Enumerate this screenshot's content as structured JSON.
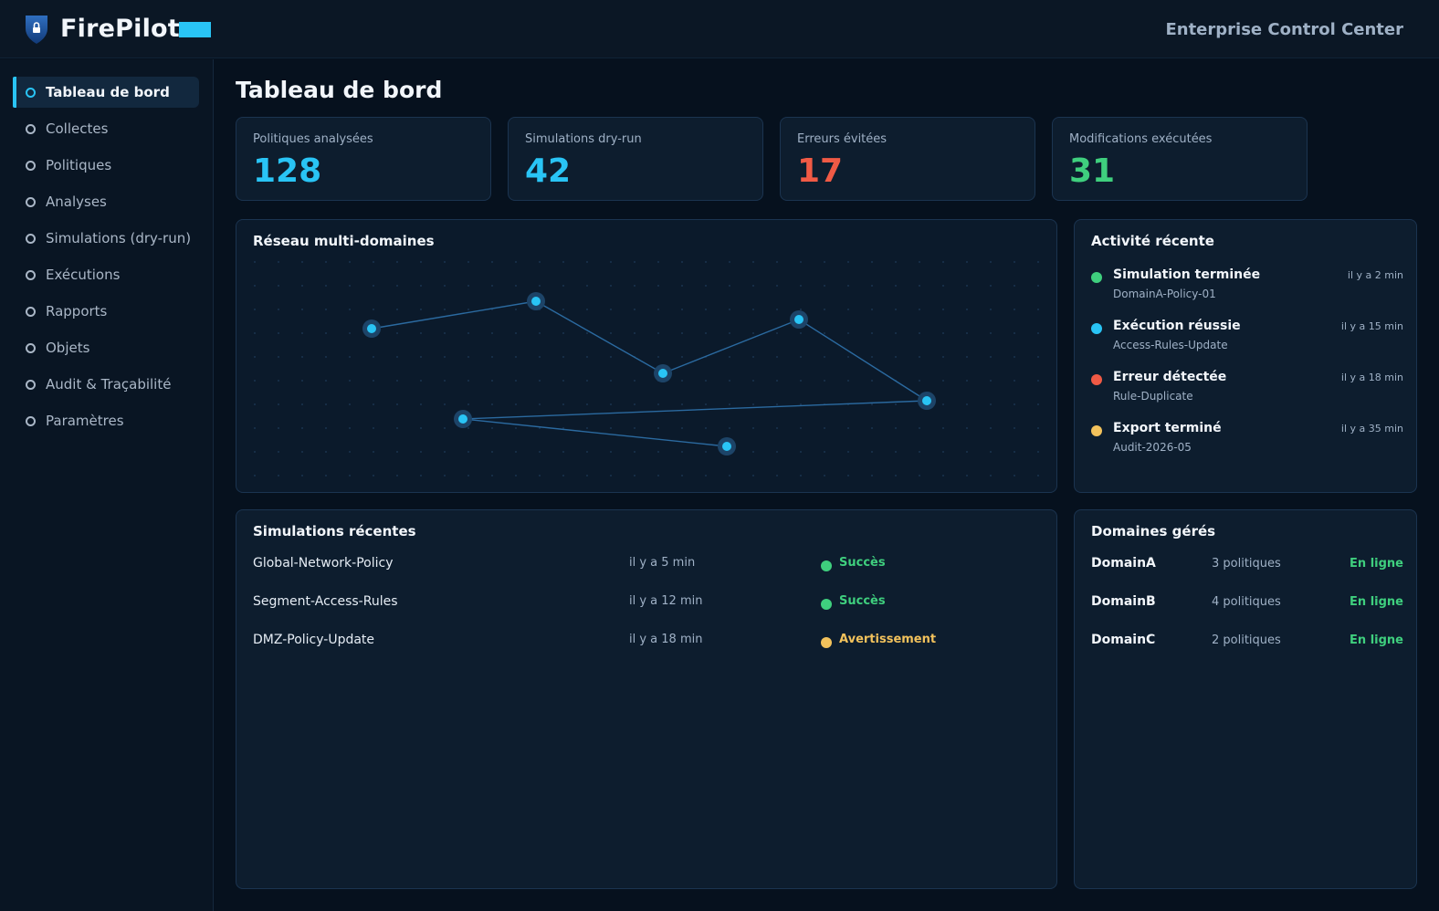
{
  "header": {
    "app_title": "FirePilot",
    "right_title": "Enterprise Control Center",
    "brand_color": "#29c4f5",
    "logo_icon": "shield-lock-icon"
  },
  "sidebar": {
    "items": [
      {
        "label": "Tableau de bord",
        "active": true
      },
      {
        "label": "Collectes"
      },
      {
        "label": "Politiques"
      },
      {
        "label": "Analyses"
      },
      {
        "label": "Simulations (dry-run)"
      },
      {
        "label": "Exécutions"
      },
      {
        "label": "Rapports"
      },
      {
        "label": "Objets"
      },
      {
        "label": "Audit & Traçabilité"
      },
      {
        "label": "Paramètres"
      }
    ]
  },
  "main": {
    "page_title": "Tableau de bord",
    "stats": [
      {
        "label": "Politiques analysées",
        "value": "128",
        "color": "#29c4f5"
      },
      {
        "label": "Simulations dry-run",
        "value": "42",
        "color": "#29c4f5"
      },
      {
        "label": "Erreurs évitées",
        "value": "17",
        "color": "#f05a45"
      },
      {
        "label": "Modifications exécutées",
        "value": "31",
        "color": "#3fcf7e"
      }
    ],
    "network": {
      "title": "Réseau multi-domaines",
      "node_count": 7
    },
    "activity": {
      "title": "Activité récente",
      "items": [
        {
          "title": "Simulation terminée",
          "sub": "DomainA-Policy-01",
          "time": "il y a 2 min",
          "color": "#3fcf7e"
        },
        {
          "title": "Exécution réussie",
          "sub": "Access-Rules-Update",
          "time": "il y a 15 min",
          "color": "#29c4f5"
        },
        {
          "title": "Erreur détectée",
          "sub": "Rule-Duplicate",
          "time": "il y a 18 min",
          "color": "#f05a45"
        },
        {
          "title": "Export terminé",
          "sub": "Audit-2026-05",
          "time": "il y a 35 min",
          "color": "#f2c25c"
        }
      ]
    },
    "simulations": {
      "title": "Simulations récentes",
      "rows": [
        {
          "name": "Global-Network-Policy",
          "time": "il y a 5 min",
          "status": "Succès",
          "color": "#3fcf7e"
        },
        {
          "name": "Segment-Access-Rules",
          "time": "il y a 12 min",
          "status": "Succès",
          "color": "#3fcf7e"
        },
        {
          "name": "DMZ-Policy-Update",
          "time": "il y a 18 min",
          "status": "Avertissement",
          "color": "#f2c25c"
        }
      ]
    },
    "domains": {
      "title": "Domaines gérés",
      "rows": [
        {
          "name": "DomainA",
          "count": "3 politiques",
          "status": "En ligne"
        },
        {
          "name": "DomainB",
          "count": "4 politiques",
          "status": "En ligne"
        },
        {
          "name": "DomainC",
          "count": "2 politiques",
          "status": "En ligne"
        }
      ]
    }
  }
}
